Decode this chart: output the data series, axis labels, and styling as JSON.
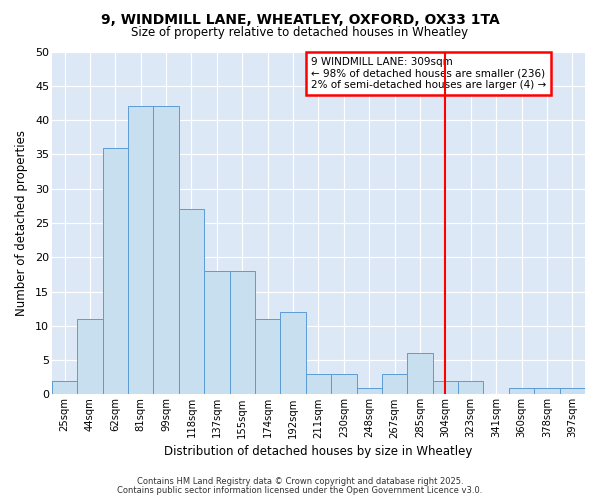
{
  "title": "9, WINDMILL LANE, WHEATLEY, OXFORD, OX33 1TA",
  "subtitle": "Size of property relative to detached houses in Wheatley",
  "xlabel": "Distribution of detached houses by size in Wheatley",
  "ylabel": "Number of detached properties",
  "bar_labels": [
    "25sqm",
    "44sqm",
    "62sqm",
    "81sqm",
    "99sqm",
    "118sqm",
    "137sqm",
    "155sqm",
    "174sqm",
    "192sqm",
    "211sqm",
    "230sqm",
    "248sqm",
    "267sqm",
    "285sqm",
    "304sqm",
    "323sqm",
    "341sqm",
    "360sqm",
    "378sqm",
    "397sqm"
  ],
  "bar_values": [
    2,
    11,
    36,
    42,
    42,
    27,
    18,
    18,
    11,
    12,
    3,
    3,
    1,
    3,
    6,
    2,
    2,
    0,
    1,
    1,
    1
  ],
  "bar_color": "#c8dff0",
  "bar_edgecolor": "#5b9bd5",
  "ylim": [
    0,
    50
  ],
  "yticks": [
    0,
    5,
    10,
    15,
    20,
    25,
    30,
    35,
    40,
    45,
    50
  ],
  "vline_color": "red",
  "vline_index": 15,
  "annotation_text": "9 WINDMILL LANE: 309sqm\n← 98% of detached houses are smaller (236)\n2% of semi-detached houses are larger (4) →",
  "annotation_box_color": "white",
  "annotation_box_edgecolor": "red",
  "figure_bg": "#ffffff",
  "plot_bg_color": "#dce8f5",
  "grid_color": "#ffffff",
  "footer1": "Contains HM Land Registry data © Crown copyright and database right 2025.",
  "footer2": "Contains public sector information licensed under the Open Government Licence v3.0."
}
